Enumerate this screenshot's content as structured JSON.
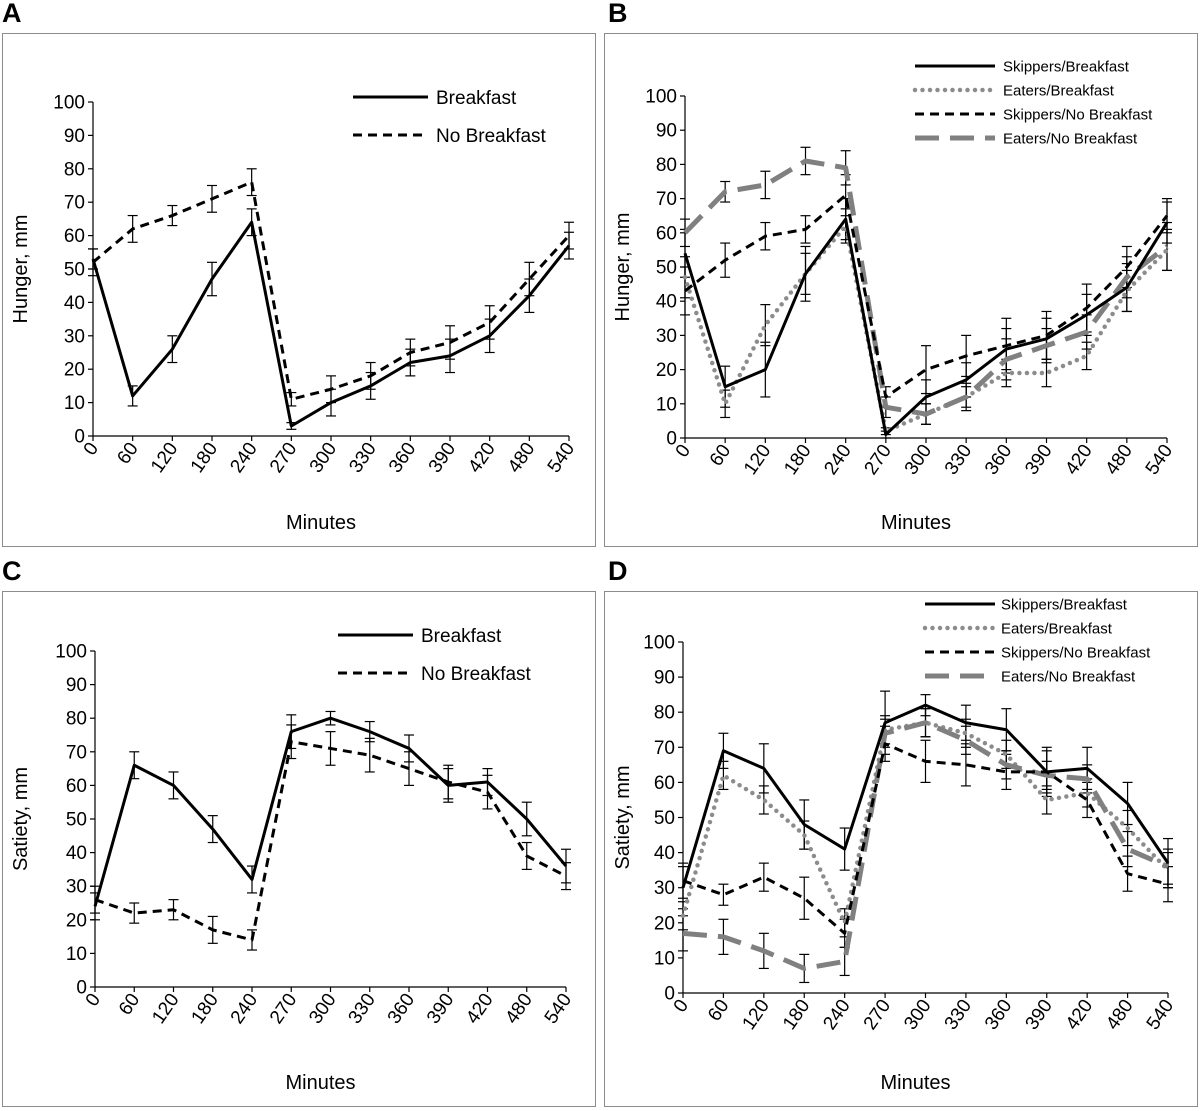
{
  "chart_data": [
    {
      "panel": "A",
      "type": "line",
      "ylabel": "Hunger, mm",
      "xlabel": "Minutes",
      "ylim": [
        0,
        100
      ],
      "yticks": [
        0,
        10,
        20,
        30,
        40,
        50,
        60,
        70,
        80,
        90,
        100
      ],
      "categories": [
        "0",
        "60",
        "120",
        "180",
        "240",
        "270",
        "300",
        "330",
        "360",
        "390",
        "420",
        "480",
        "540"
      ],
      "legend_position": "top-right",
      "series": [
        {
          "name": "Breakfast",
          "style": "solid-black",
          "values": [
            53,
            12,
            26,
            47,
            64,
            3,
            10,
            15,
            22,
            24,
            30,
            42,
            57
          ],
          "errors": [
            3,
            3,
            4,
            5,
            4,
            1,
            4,
            4,
            4,
            5,
            5,
            5,
            4
          ]
        },
        {
          "name": "No Breakfast",
          "style": "dash-black",
          "values": [
            52,
            62,
            66,
            71,
            76,
            11,
            14,
            18,
            25,
            28,
            34,
            47,
            60
          ],
          "errors": [
            4,
            4,
            3,
            4,
            4,
            2,
            4,
            4,
            4,
            5,
            5,
            5,
            4
          ]
        }
      ]
    },
    {
      "panel": "B",
      "type": "line",
      "ylabel": "Hunger, mm",
      "xlabel": "Minutes",
      "ylim": [
        0,
        100
      ],
      "yticks": [
        0,
        10,
        20,
        30,
        40,
        50,
        60,
        70,
        80,
        90,
        100
      ],
      "categories": [
        "0",
        "60",
        "120",
        "180",
        "240",
        "270",
        "300",
        "330",
        "360",
        "390",
        "420",
        "480",
        "540"
      ],
      "legend_position": "top-right",
      "series": [
        {
          "name": "Skippers/Breakfast",
          "style": "solid-black",
          "values": [
            54,
            15,
            20,
            48,
            64,
            1,
            12,
            17,
            26,
            29,
            36,
            44,
            63
          ],
          "errors": [
            7,
            6,
            8,
            8,
            6,
            1,
            5,
            5,
            6,
            6,
            6,
            7,
            6
          ]
        },
        {
          "name": "Eaters/Breakfast",
          "style": "dot-gray",
          "values": [
            47,
            10,
            33,
            48,
            62,
            2,
            7,
            12,
            19,
            19,
            24,
            43,
            55
          ],
          "errors": [
            6,
            4,
            6,
            6,
            5,
            1,
            3,
            4,
            4,
            4,
            4,
            6,
            6
          ]
        },
        {
          "name": "Skippers/No Breakfast",
          "style": "dash-black",
          "values": [
            43,
            52,
            59,
            61,
            71,
            12,
            20,
            24,
            27,
            30,
            38,
            50,
            65
          ],
          "errors": [
            7,
            5,
            4,
            4,
            6,
            3,
            7,
            6,
            8,
            7,
            7,
            6,
            5
          ]
        },
        {
          "name": "Eaters/No Breakfast",
          "style": "longdash-gray",
          "values": [
            60,
            72,
            74,
            81,
            79,
            9,
            7,
            12,
            23,
            27,
            31,
            47,
            56
          ],
          "errors": [
            4,
            3,
            4,
            4,
            5,
            3,
            3,
            3,
            6,
            5,
            5,
            6,
            7
          ]
        }
      ]
    },
    {
      "panel": "C",
      "type": "line",
      "ylabel": "Satiety, mm",
      "xlabel": "Minutes",
      "ylim": [
        0,
        100
      ],
      "yticks": [
        0,
        10,
        20,
        30,
        40,
        50,
        60,
        70,
        80,
        90,
        100
      ],
      "categories": [
        "0",
        "60",
        "120",
        "180",
        "240",
        "270",
        "300",
        "330",
        "360",
        "390",
        "420",
        "480",
        "540"
      ],
      "legend_position": "top-right",
      "series": [
        {
          "name": "Breakfast",
          "style": "solid-black",
          "values": [
            24,
            66,
            60,
            47,
            32,
            76,
            80,
            76,
            71,
            60,
            61,
            50,
            36
          ],
          "errors": [
            4,
            4,
            4,
            4,
            4,
            5,
            2,
            3,
            4,
            5,
            4,
            5,
            5
          ]
        },
        {
          "name": "No Breakfast",
          "style": "dash-black",
          "values": [
            26,
            22,
            23,
            17,
            14,
            73,
            71,
            69,
            65,
            61,
            58,
            39,
            33
          ],
          "errors": [
            4,
            3,
            3,
            4,
            3,
            5,
            5,
            5,
            5,
            5,
            5,
            4,
            4
          ]
        }
      ]
    },
    {
      "panel": "D",
      "type": "line",
      "ylabel": "Satiety, mm",
      "xlabel": "Minutes",
      "ylim": [
        0,
        100
      ],
      "yticks": [
        0,
        10,
        20,
        30,
        40,
        50,
        60,
        70,
        80,
        90,
        100
      ],
      "categories": [
        "0",
        "60",
        "120",
        "180",
        "240",
        "270",
        "300",
        "330",
        "360",
        "390",
        "420",
        "480",
        "540"
      ],
      "legend_position": "top-right",
      "series": [
        {
          "name": "Skippers/Breakfast",
          "style": "solid-black",
          "values": [
            30,
            69,
            64,
            48,
            41,
            77,
            82,
            77,
            75,
            63,
            64,
            54,
            37
          ],
          "errors": [
            6,
            5,
            7,
            7,
            6,
            9,
            3,
            5,
            6,
            7,
            6,
            6,
            7
          ]
        },
        {
          "name": "Eaters/Breakfast",
          "style": "dot-gray",
          "values": [
            22,
            62,
            55,
            45,
            20,
            75,
            77,
            74,
            68,
            55,
            57,
            47,
            35
          ],
          "errors": [
            4,
            4,
            4,
            4,
            4,
            4,
            4,
            4,
            4,
            4,
            4,
            5,
            5
          ]
        },
        {
          "name": "Skippers/No Breakfast",
          "style": "dash-black",
          "values": [
            32,
            28,
            33,
            27,
            17,
            71,
            66,
            65,
            63,
            63,
            55,
            34,
            31
          ],
          "errors": [
            5,
            3,
            4,
            6,
            4,
            5,
            6,
            6,
            5,
            6,
            5,
            5,
            5
          ]
        },
        {
          "name": "Eaters/No Breakfast",
          "style": "longdash-gray",
          "values": [
            17,
            16,
            12,
            7,
            9,
            74,
            77,
            72,
            65,
            62,
            61,
            41,
            36
          ],
          "errors": [
            5,
            5,
            5,
            4,
            4,
            4,
            4,
            4,
            4,
            4,
            4,
            5,
            5
          ]
        }
      ]
    }
  ]
}
